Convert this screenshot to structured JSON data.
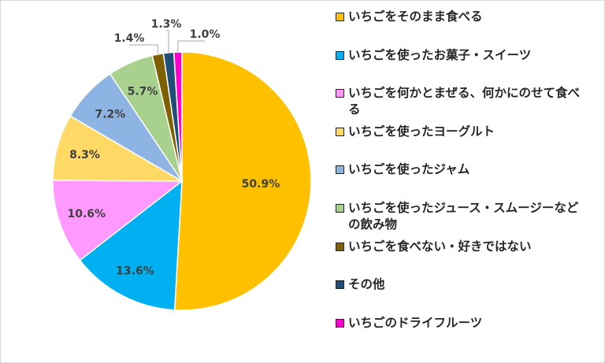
{
  "chart_data": {
    "type": "pie",
    "start": "12 o'clock, clockwise",
    "slices": [
      {
        "label": "いちごをそのまま食べる",
        "value": 50.9,
        "text": "50.9%",
        "color": "#FFC000"
      },
      {
        "label": "いちごを使ったお菓子・スイーツ",
        "value": 13.6,
        "text": "13.6%",
        "color": "#00B0F0"
      },
      {
        "label": "いちごを何かとまぜる、何かにのせて食べる",
        "value": 10.6,
        "text": "10.6%",
        "color": "#FF99FF"
      },
      {
        "label": "いちごを使ったヨーグルト",
        "value": 8.3,
        "text": "8.3%",
        "color": "#FFD966"
      },
      {
        "label": "いちごを使ったジャム",
        "value": 7.2,
        "text": "7.2%",
        "color": "#8DB4E2"
      },
      {
        "label": "いちごを使ったジュース・スムージーなどの飲み物",
        "value": 5.7,
        "text": "5.7%",
        "color": "#A9D18E"
      },
      {
        "label": "いちごを食べない・好きではない",
        "value": 1.4,
        "text": "1.4%",
        "color": "#7F6000"
      },
      {
        "label": "その他",
        "value": 1.3,
        "text": "1.3%",
        "color": "#1F4E79"
      },
      {
        "label": "いちごのドライフルーツ",
        "value": 1.0,
        "text": "1.0%",
        "color": "#FF00CC"
      }
    ],
    "legend": "right",
    "data_labels": "percent"
  }
}
